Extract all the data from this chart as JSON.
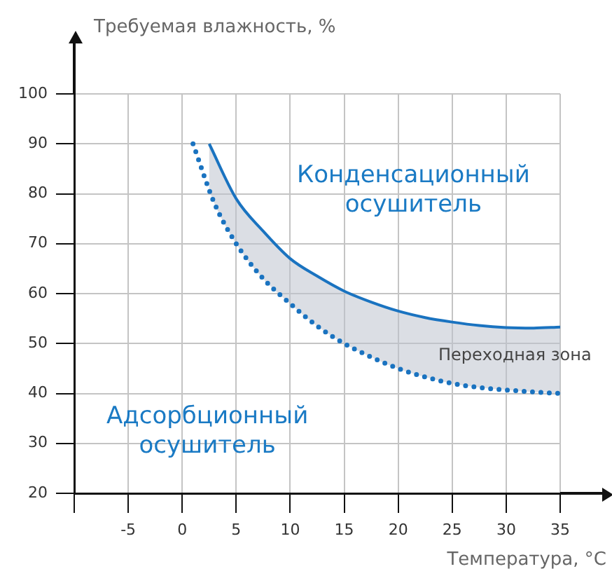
{
  "chart_data": {
    "type": "line",
    "xlabel": "Температура, °C",
    "ylabel": "Требуемая влажность, %",
    "xlim": [
      -10,
      35
    ],
    "ylim": [
      20,
      100
    ],
    "xticks": [
      {
        "value": -10,
        "label": null
      },
      -5,
      0,
      5,
      10,
      15,
      20,
      25,
      30,
      35
    ],
    "yticks": [
      20,
      30,
      40,
      50,
      60,
      70,
      80,
      90,
      100
    ],
    "grid": true,
    "marker": "none",
    "series": [
      {
        "type": "line",
        "color": "#1a73c0",
        "line_style": "solid",
        "x": [
          2.5,
          5,
          7.5,
          10,
          12.5,
          15,
          17.5,
          20,
          22.5,
          25,
          27.5,
          30,
          32.5,
          35
        ],
        "values": [
          90,
          79,
          72.5,
          67,
          63.5,
          60.5,
          58.3,
          56.5,
          55.2,
          54.3,
          53.6,
          53.2,
          53.1,
          53.3
        ]
      },
      {
        "type": "line",
        "color": "#1a73c0",
        "line_style": "dotted",
        "x": [
          1,
          3,
          5,
          7.5,
          10,
          12.5,
          15,
          17.5,
          20,
          22.5,
          25,
          27.5,
          30,
          32.5,
          35
        ],
        "values": [
          90,
          78,
          70,
          63,
          58,
          53.5,
          50,
          47.3,
          45,
          43.3,
          42,
          41.2,
          40.7,
          40.3,
          40
        ]
      }
    ],
    "annotations": [
      "Конденсационный осушитель",
      "Адсорбционный осушитель",
      "Переходная зона"
    ]
  }
}
